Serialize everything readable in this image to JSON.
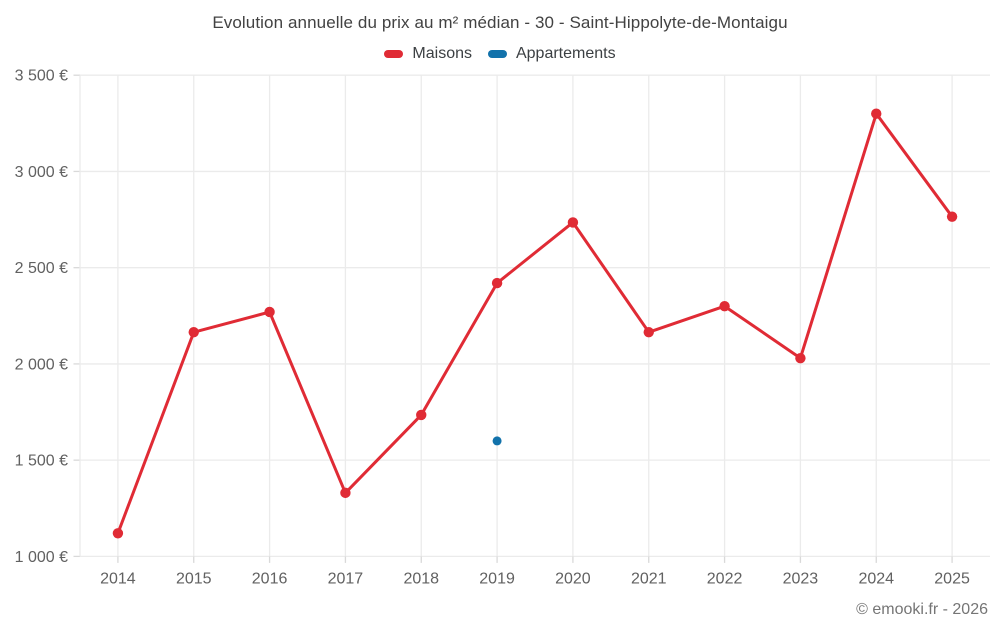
{
  "title": "Evolution annuelle du prix au m² médian - 30 - Saint-Hippolyte-de-Montaigu",
  "footer": "© emooki.fr - 2026",
  "colors": {
    "maisons": "#e02b35",
    "appartements": "#1272ab",
    "grid": "#ebebeb",
    "tick": "#d9d9d9",
    "axis_text": "#616161",
    "title_text": "#424242",
    "footer_text": "#757575"
  },
  "chart_data": {
    "type": "line",
    "title": "Evolution annuelle du prix au m² médian - 30 - Saint-Hippolyte-de-Montaigu",
    "categories": [
      "2014",
      "2015",
      "2016",
      "2017",
      "2018",
      "2019",
      "2020",
      "2021",
      "2022",
      "2023",
      "2024",
      "2025"
    ],
    "series": [
      {
        "name": "Maisons",
        "color": "#e02b35",
        "style": "line-with-points",
        "values": [
          1120,
          2165,
          2270,
          1330,
          1735,
          2420,
          2735,
          2165,
          2300,
          2030,
          3300,
          2765
        ]
      },
      {
        "name": "Appartements",
        "color": "#1272ab",
        "style": "points-only",
        "values": [
          null,
          null,
          null,
          null,
          null,
          1600,
          null,
          null,
          null,
          null,
          null,
          null
        ]
      }
    ],
    "xlabel": "",
    "ylabel": "",
    "ylim": [
      1000,
      3500
    ],
    "yticks": [
      1000,
      1500,
      2000,
      2500,
      3000,
      3500
    ],
    "ytick_labels": [
      "1 000 €",
      "1 500 €",
      "2 000 €",
      "2 500 €",
      "3 000 €",
      "3 500 €"
    ],
    "grid": true,
    "legend_position": "top"
  }
}
